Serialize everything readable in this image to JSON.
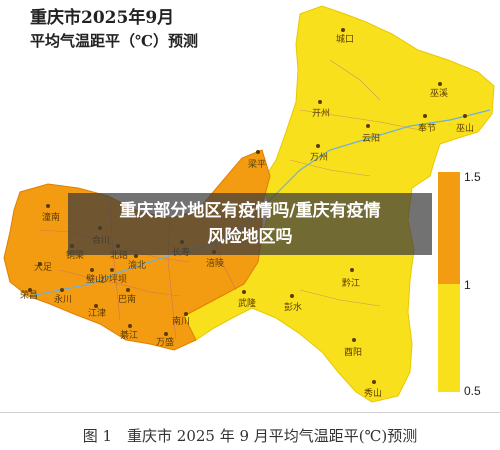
{
  "map": {
    "title_line1": "重庆市2025年9月",
    "title_line2": "平均气温距平（℃）预测",
    "cities": [
      {
        "name": "城口",
        "color": "yellow"
      },
      {
        "name": "巫溪",
        "color": "yellow"
      },
      {
        "name": "开州",
        "color": "yellow"
      },
      {
        "name": "云阳",
        "color": "yellow"
      },
      {
        "name": "奉节",
        "color": "yellow"
      },
      {
        "name": "巫山",
        "color": "yellow"
      },
      {
        "name": "万州",
        "color": "yellow"
      },
      {
        "name": "梁平",
        "color": "orange"
      },
      {
        "name": "潼南",
        "color": "orange"
      },
      {
        "name": "合川",
        "color": "orange"
      },
      {
        "name": "铜梁",
        "color": "orange"
      },
      {
        "name": "北碚",
        "color": "orange"
      },
      {
        "name": "大足",
        "color": "orange"
      },
      {
        "name": "璧山",
        "color": "orange"
      },
      {
        "name": "沙坪坝",
        "color": "orange"
      },
      {
        "name": "渝北",
        "color": "orange"
      },
      {
        "name": "长寿",
        "color": "orange"
      },
      {
        "name": "涪陵",
        "color": "orange"
      },
      {
        "name": "荣昌",
        "color": "orange"
      },
      {
        "name": "永川",
        "color": "orange"
      },
      {
        "name": "巴南",
        "color": "orange"
      },
      {
        "name": "江津",
        "color": "orange"
      },
      {
        "name": "綦江",
        "color": "orange"
      },
      {
        "name": "万盛",
        "color": "orange"
      },
      {
        "name": "南川",
        "color": "yellow"
      },
      {
        "name": "武隆",
        "color": "yellow"
      },
      {
        "name": "彭水",
        "color": "yellow"
      },
      {
        "name": "黔江",
        "color": "yellow"
      },
      {
        "name": "酉阳",
        "color": "yellow"
      },
      {
        "name": "秀山",
        "color": "yellow"
      }
    ],
    "colors": {
      "high": "#f39c12",
      "low": "#f9e01c"
    }
  },
  "legend": {
    "ticks": [
      "1.5",
      "1",
      "0.5"
    ],
    "range_high": [
      1,
      1.5
    ],
    "range_low": [
      0.5,
      1
    ]
  },
  "overlay": {
    "line1": "重庆部分地区有疫情吗/重庆有疫情",
    "line2": "风险地区吗"
  },
  "caption": "图 1　重庆市 2025 年 9 月平均气温距平(℃)预测"
}
